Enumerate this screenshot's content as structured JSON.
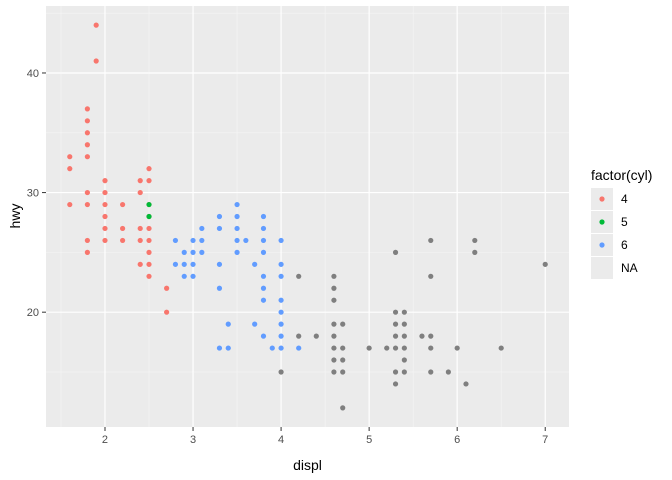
{
  "chart_data": {
    "type": "scatter",
    "xlabel": "displ",
    "ylabel": "hwy",
    "xlim": [
      1.33,
      7.27
    ],
    "ylim": [
      10.4,
      45.6
    ],
    "x_ticks": [
      {
        "value": 2,
        "label": "2"
      },
      {
        "value": 3,
        "label": "3"
      },
      {
        "value": 4,
        "label": "4"
      },
      {
        "value": 5,
        "label": "5"
      },
      {
        "value": 6,
        "label": "6"
      },
      {
        "value": 7,
        "label": "7"
      }
    ],
    "y_ticks": [
      {
        "value": 20,
        "label": "20"
      },
      {
        "value": 30,
        "label": "30"
      },
      {
        "value": 40,
        "label": "40"
      }
    ],
    "grid": true,
    "panel_background": "#ebebeb",
    "legend": {
      "title": "factor(cyl)",
      "position": "right",
      "entries": [
        {
          "label": "4",
          "color": "#f8766d"
        },
        {
          "label": "5",
          "color": "#00ba38"
        },
        {
          "label": "6",
          "color": "#619cff"
        },
        {
          "label": "NA",
          "color": "#7f7f7f"
        }
      ]
    },
    "series": [
      {
        "name": "4",
        "color": "#f8766d",
        "points": [
          [
            1.6,
            33
          ],
          [
            1.6,
            32
          ],
          [
            1.6,
            29
          ],
          [
            1.8,
            37
          ],
          [
            1.8,
            36
          ],
          [
            1.8,
            35
          ],
          [
            1.8,
            34
          ],
          [
            1.8,
            33
          ],
          [
            1.8,
            30
          ],
          [
            1.8,
            29
          ],
          [
            1.8,
            26
          ],
          [
            1.8,
            25
          ],
          [
            1.9,
            44
          ],
          [
            1.9,
            41
          ],
          [
            2.0,
            31
          ],
          [
            2.0,
            30
          ],
          [
            2.0,
            29
          ],
          [
            2.0,
            28
          ],
          [
            2.0,
            27
          ],
          [
            2.0,
            26
          ],
          [
            2.2,
            29
          ],
          [
            2.2,
            27
          ],
          [
            2.2,
            26
          ],
          [
            2.4,
            31
          ],
          [
            2.4,
            30
          ],
          [
            2.4,
            27
          ],
          [
            2.4,
            26
          ],
          [
            2.4,
            24
          ],
          [
            2.5,
            32
          ],
          [
            2.5,
            31
          ],
          [
            2.5,
            29
          ],
          [
            2.5,
            28
          ],
          [
            2.5,
            27
          ],
          [
            2.5,
            26
          ],
          [
            2.5,
            25
          ],
          [
            2.5,
            24
          ],
          [
            2.5,
            23
          ],
          [
            2.7,
            22
          ],
          [
            2.7,
            20
          ]
        ]
      },
      {
        "name": "5",
        "color": "#00ba38",
        "points": [
          [
            2.5,
            29
          ],
          [
            2.5,
            28
          ]
        ]
      },
      {
        "name": "6",
        "color": "#619cff",
        "points": [
          [
            2.8,
            24
          ],
          [
            2.8,
            26
          ],
          [
            2.9,
            25
          ],
          [
            2.9,
            24
          ],
          [
            2.9,
            23
          ],
          [
            3.0,
            26
          ],
          [
            3.0,
            25
          ],
          [
            3.0,
            24
          ],
          [
            3.0,
            23
          ],
          [
            3.1,
            27
          ],
          [
            3.1,
            26
          ],
          [
            3.1,
            25
          ],
          [
            3.3,
            28
          ],
          [
            3.3,
            27
          ],
          [
            3.3,
            24
          ],
          [
            3.3,
            22
          ],
          [
            3.3,
            17
          ],
          [
            3.4,
            19
          ],
          [
            3.4,
            17
          ],
          [
            3.5,
            29
          ],
          [
            3.5,
            28
          ],
          [
            3.5,
            27
          ],
          [
            3.5,
            26
          ],
          [
            3.5,
            25
          ],
          [
            3.6,
            26
          ],
          [
            3.7,
            24
          ],
          [
            3.7,
            19
          ],
          [
            3.8,
            28
          ],
          [
            3.8,
            27
          ],
          [
            3.8,
            26
          ],
          [
            3.8,
            25
          ],
          [
            3.8,
            23
          ],
          [
            3.8,
            22
          ],
          [
            3.8,
            21
          ],
          [
            3.8,
            18
          ],
          [
            3.9,
            17
          ],
          [
            4.0,
            26
          ],
          [
            4.0,
            24
          ],
          [
            4.0,
            23
          ],
          [
            4.0,
            21
          ],
          [
            4.0,
            20
          ],
          [
            4.0,
            19
          ],
          [
            4.0,
            18
          ],
          [
            4.0,
            17
          ],
          [
            4.2,
            17
          ]
        ]
      },
      {
        "name": "NA",
        "color": "#7f7f7f",
        "points": [
          [
            4.0,
            15
          ],
          [
            4.2,
            23
          ],
          [
            4.2,
            18
          ],
          [
            4.4,
            18
          ],
          [
            4.6,
            23
          ],
          [
            4.6,
            22
          ],
          [
            4.6,
            21
          ],
          [
            4.6,
            19
          ],
          [
            4.6,
            18
          ],
          [
            4.6,
            17
          ],
          [
            4.6,
            16
          ],
          [
            4.6,
            15
          ],
          [
            4.7,
            19
          ],
          [
            4.7,
            17
          ],
          [
            4.7,
            16
          ],
          [
            4.7,
            15
          ],
          [
            4.7,
            12
          ],
          [
            5.0,
            17
          ],
          [
            5.2,
            17
          ],
          [
            5.3,
            25
          ],
          [
            5.3,
            20
          ],
          [
            5.3,
            19
          ],
          [
            5.3,
            18
          ],
          [
            5.3,
            17
          ],
          [
            5.3,
            15
          ],
          [
            5.3,
            14
          ],
          [
            5.4,
            20
          ],
          [
            5.4,
            19
          ],
          [
            5.4,
            18
          ],
          [
            5.4,
            17
          ],
          [
            5.4,
            16
          ],
          [
            5.4,
            15
          ],
          [
            5.6,
            18
          ],
          [
            5.7,
            26
          ],
          [
            5.7,
            23
          ],
          [
            5.7,
            18
          ],
          [
            5.7,
            17
          ],
          [
            5.7,
            15
          ],
          [
            5.9,
            15
          ],
          [
            6.0,
            17
          ],
          [
            6.1,
            14
          ],
          [
            6.2,
            26
          ],
          [
            6.2,
            25
          ],
          [
            6.5,
            17
          ],
          [
            7.0,
            24
          ]
        ]
      }
    ]
  }
}
